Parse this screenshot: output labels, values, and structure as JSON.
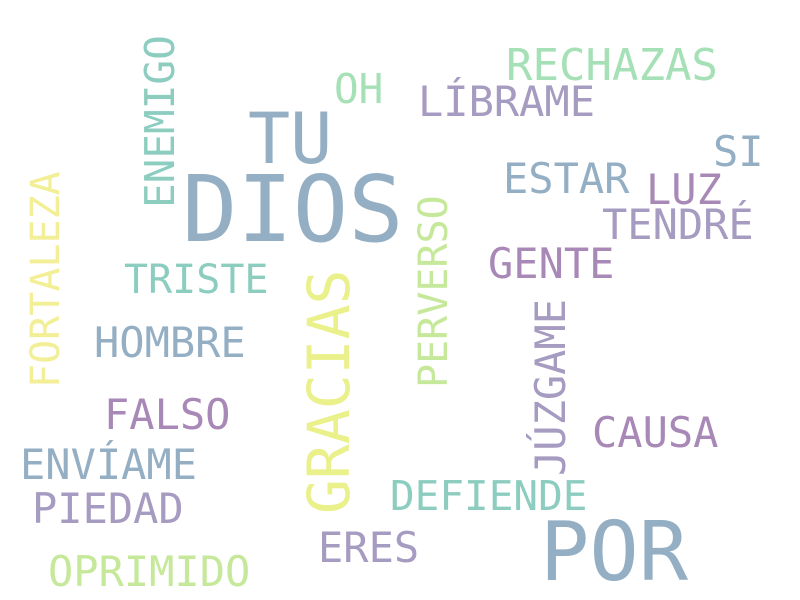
{
  "word_cloud": {
    "words": [
      {
        "text": "DIOS",
        "color": "#94afc4",
        "orientation": "horizontal"
      },
      {
        "text": "POR",
        "color": "#94afc4",
        "orientation": "horizontal"
      },
      {
        "text": "TU",
        "color": "#94afc4",
        "orientation": "horizontal"
      },
      {
        "text": "GRACIAS",
        "color": "#eaf08a",
        "orientation": "vertical"
      },
      {
        "text": "RECHAZAS",
        "color": "#a6e0b6",
        "orientation": "horizontal"
      },
      {
        "text": "OH",
        "color": "#a6e0b6",
        "orientation": "horizontal"
      },
      {
        "text": "LÍBRAME",
        "color": "#a69bc0",
        "orientation": "horizontal"
      },
      {
        "text": "ENEMIGO",
        "color": "#8ccdbf",
        "orientation": "vertical"
      },
      {
        "text": "SI",
        "color": "#94afc4",
        "orientation": "horizontal"
      },
      {
        "text": "ESTAR",
        "color": "#94afc4",
        "orientation": "horizontal"
      },
      {
        "text": "LUZ",
        "color": "#a888b6",
        "orientation": "horizontal"
      },
      {
        "text": "TENDRÉ",
        "color": "#a69bc0",
        "orientation": "horizontal"
      },
      {
        "text": "FORTALEZA",
        "color": "#f2ef97",
        "orientation": "vertical"
      },
      {
        "text": "GENTE",
        "color": "#a888b6",
        "orientation": "horizontal"
      },
      {
        "text": "TRISTE",
        "color": "#8ccdbf",
        "orientation": "horizontal"
      },
      {
        "text": "PERVERSO",
        "color": "#c6e89a",
        "orientation": "vertical"
      },
      {
        "text": "HOMBRE",
        "color": "#94afc4",
        "orientation": "horizontal"
      },
      {
        "text": "JÚZGAME",
        "color": "#a69bc0",
        "orientation": "vertical"
      },
      {
        "text": "FALSO",
        "color": "#a888b6",
        "orientation": "horizontal"
      },
      {
        "text": "CAUSA",
        "color": "#a888b6",
        "orientation": "horizontal"
      },
      {
        "text": "ENVÍAME",
        "color": "#94afc4",
        "orientation": "horizontal"
      },
      {
        "text": "DEFIENDE",
        "color": "#8ccdbf",
        "orientation": "horizontal"
      },
      {
        "text": "PIEDAD",
        "color": "#a69bc0",
        "orientation": "horizontal"
      },
      {
        "text": "ERES",
        "color": "#a69bc0",
        "orientation": "horizontal"
      },
      {
        "text": "OPRIMIDO",
        "color": "#c6e89a",
        "orientation": "horizontal"
      }
    ]
  }
}
